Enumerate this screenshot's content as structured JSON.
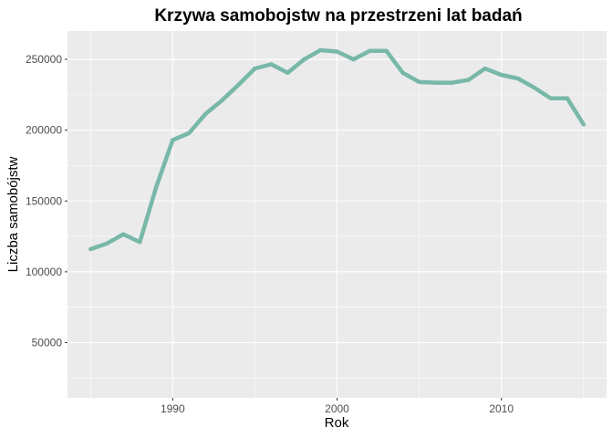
{
  "chart_data": {
    "type": "line",
    "title": "Krzywa samobojstw na przestrzeni lat badań",
    "xlabel": "Rok",
    "ylabel": "Liczba samobójstw",
    "xlim": [
      1983.6,
      2016.4
    ],
    "ylim": [
      11000,
      270000
    ],
    "x_ticks": [
      1990,
      2000,
      2010
    ],
    "x_tick_labels": [
      "1990",
      "2000",
      "2010"
    ],
    "y_ticks": [
      50000,
      100000,
      150000,
      200000,
      250000
    ],
    "y_tick_labels": [
      "50000",
      "100000",
      "150000",
      "200000",
      "250000"
    ],
    "grid": true,
    "legend": "none",
    "colors": {
      "panel": "#ebebeb",
      "grid": "#ffffff",
      "line": "#78b8a8"
    },
    "series": [
      {
        "x": [
          1985,
          1986,
          1987,
          1988,
          1989,
          1990,
          1991,
          1992,
          1993,
          1994,
          1995,
          1996,
          1997,
          1998,
          1999,
          2000,
          2001,
          2002,
          2003,
          2004,
          2005,
          2006,
          2007,
          2008,
          2009,
          2010,
          2011,
          2012,
          2013,
          2014,
          2015
        ],
        "values": [
          116000,
          120000,
          126500,
          121000,
          160000,
          193000,
          198000,
          211500,
          221000,
          232000,
          243500,
          246500,
          240500,
          250000,
          256500,
          255500,
          250000,
          256000,
          256000,
          240500,
          234000,
          233500,
          233500,
          235500,
          243500,
          239000,
          236500,
          230000,
          222500,
          222500,
          204000
        ]
      }
    ]
  }
}
